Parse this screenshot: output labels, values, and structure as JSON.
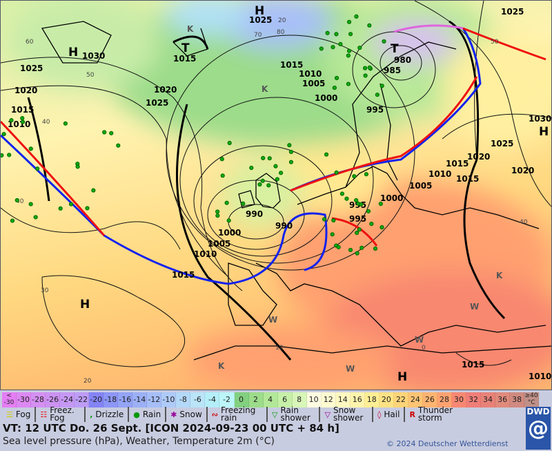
{
  "map": {
    "pressure_labels": [
      "1025",
      "1030",
      "1015",
      "1025",
      "1020",
      "1025",
      "1015",
      "1010",
      "1020",
      "1015",
      "1010",
      "1005",
      "1000",
      "995",
      "990",
      "985",
      "980",
      "1015",
      "1025",
      "1020",
      "1015",
      "1010",
      "1005",
      "1000",
      "995",
      "990",
      "1000",
      "1005",
      "1010",
      "1015",
      "1020",
      "1030",
      "1015",
      "1010",
      "1025",
      "995"
    ],
    "centers": [
      "H",
      "T",
      "H",
      "T",
      "H",
      "H",
      "H",
      "K",
      "K",
      "K",
      "W",
      "W",
      "W",
      "W",
      "K"
    ],
    "temperature_contours": [
      "60",
      "50",
      "40",
      "40",
      "30",
      "20",
      "20",
      "10",
      "0",
      "70",
      "80",
      "50",
      "40"
    ]
  },
  "scale": {
    "items": [
      {
        "label": "< -30",
        "color": "#e47ef4"
      },
      {
        "label": "-30",
        "color": "#dd88f2"
      },
      {
        "label": "-28",
        "color": "#d590f2"
      },
      {
        "label": "-26",
        "color": "#cc92f2"
      },
      {
        "label": "-24",
        "color": "#c598f4"
      },
      {
        "label": "-22",
        "color": "#bd9cf6"
      },
      {
        "label": "-20",
        "color": "#8484f6"
      },
      {
        "label": "-18",
        "color": "#8c96f6"
      },
      {
        "label": "-16",
        "color": "#94a4f6"
      },
      {
        "label": "-14",
        "color": "#9cb0f6"
      },
      {
        "label": "-12",
        "color": "#a6bef8"
      },
      {
        "label": "-10",
        "color": "#aecaf8"
      },
      {
        "label": "-8",
        "color": "#b4d8f8"
      },
      {
        "label": "-6",
        "color": "#bae4f8"
      },
      {
        "label": "-4",
        "color": "#b4eef8"
      },
      {
        "label": "-2",
        "color": "#bcf6f8"
      },
      {
        "label": "0",
        "color": "#82d080"
      },
      {
        "label": "2",
        "color": "#9cdc8a"
      },
      {
        "label": "4",
        "color": "#b2e898"
      },
      {
        "label": "6",
        "color": "#c6f0a8"
      },
      {
        "label": "8",
        "color": "#d8f6b8"
      },
      {
        "label": "10",
        "color": "#fffce2"
      },
      {
        "label": "12",
        "color": "#fffad0"
      },
      {
        "label": "14",
        "color": "#fff8c0"
      },
      {
        "label": "16",
        "color": "#fff4ac"
      },
      {
        "label": "18",
        "color": "#ffee94"
      },
      {
        "label": "20",
        "color": "#ffe284"
      },
      {
        "label": "22",
        "color": "#ffd478"
      },
      {
        "label": "24",
        "color": "#ffc474"
      },
      {
        "label": "26",
        "color": "#ffb470"
      },
      {
        "label": "28",
        "color": "#ffa270"
      },
      {
        "label": "30",
        "color": "#f88872"
      },
      {
        "label": "32",
        "color": "#f07e78"
      },
      {
        "label": "34",
        "color": "#e88278"
      },
      {
        "label": "36",
        "color": "#e08a7c"
      },
      {
        "label": "38",
        "color": "#d08a80"
      },
      {
        "label": "≥40 °C",
        "color": "#c09088"
      }
    ]
  },
  "legend": {
    "items": [
      {
        "label": "Fog",
        "icon": "fog-icon"
      },
      {
        "label": "Freez. Fog",
        "icon": "freezing-fog-icon"
      },
      {
        "label": "Drizzle",
        "icon": "drizzle-icon"
      },
      {
        "label": "Rain",
        "icon": "rain-icon"
      },
      {
        "label": "Snow",
        "icon": "snow-icon"
      },
      {
        "label": "Freezing rain",
        "icon": "freezing-rain-icon"
      },
      {
        "label": "Rain shower",
        "icon": "rain-shower-icon"
      },
      {
        "label": "Snow shower",
        "icon": "snow-shower-icon"
      },
      {
        "label": "Hail",
        "icon": "hail-icon"
      },
      {
        "label": "Thunder storm",
        "icon": "thunderstorm-icon"
      }
    ]
  },
  "footer": {
    "valid_time": "VT: 12 UTC Do.  26 Sept. [ICON 2024-09-23  00 UTC + 84 h]",
    "subtitle": "Sea level pressure (hPa), Weather, Temperature 2m (°C)",
    "copyright": "© 2024 Deutscher Wetterdienst",
    "logo": "DWD"
  },
  "colors": {
    "warm_front": "#ee1111",
    "cold_front": "#1122ee",
    "occlusion": "#dd66dd"
  }
}
